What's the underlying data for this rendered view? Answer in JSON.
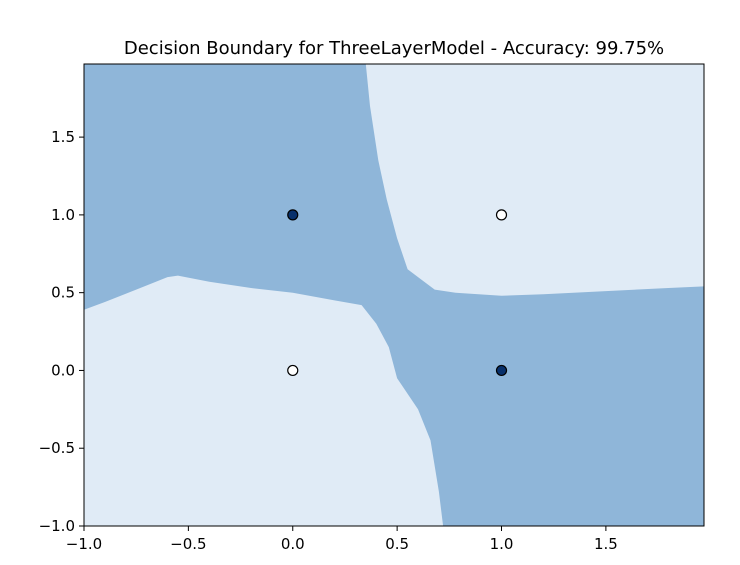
{
  "chart_data": {
    "type": "scatter",
    "title": "Decision Boundary for ThreeLayerModel - Accuracy: 99.75%",
    "xlabel": "",
    "ylabel": "",
    "xlim": [
      -1.0,
      1.97
    ],
    "ylim": [
      -1.0,
      1.97
    ],
    "xticks": [
      -1.0,
      -0.5,
      0.0,
      0.5,
      1.0,
      1.5
    ],
    "xtick_labels": [
      "−1.0",
      "−0.5",
      "0.0",
      "0.5",
      "1.0",
      "1.5"
    ],
    "yticks": [
      -1.0,
      -0.5,
      0.0,
      0.5,
      1.0,
      1.5
    ],
    "ytick_labels": [
      "−1.0",
      "−0.5",
      "0.0",
      "0.5",
      "1.0",
      "1.5"
    ],
    "grid": false,
    "colors": {
      "region_class0": "#e0ebf6",
      "region_class1": "#8fb6d9",
      "point_class1": "#08306b",
      "point_class0": "#ffffff",
      "point_edge": "#000000"
    },
    "points": [
      {
        "x": 0,
        "y": 0,
        "class": 0
      },
      {
        "x": 0,
        "y": 1,
        "class": 1
      },
      {
        "x": 1,
        "y": 0,
        "class": 1
      },
      {
        "x": 1,
        "y": 1,
        "class": 0
      }
    ],
    "regions": [
      {
        "class": 1,
        "polygon": [
          [
            -1.0,
            1.97
          ],
          [
            0.35,
            1.97
          ],
          [
            0.37,
            1.7
          ],
          [
            0.41,
            1.35
          ],
          [
            0.45,
            1.1
          ],
          [
            0.5,
            0.85
          ],
          [
            0.55,
            0.65
          ],
          [
            0.62,
            0.58
          ],
          [
            0.68,
            0.52
          ],
          [
            0.78,
            0.5
          ],
          [
            1.0,
            0.48
          ],
          [
            1.2,
            0.49
          ],
          [
            1.5,
            0.51
          ],
          [
            1.8,
            0.53
          ],
          [
            1.97,
            0.54
          ],
          [
            1.97,
            -1.0
          ],
          [
            0.72,
            -1.0
          ],
          [
            0.7,
            -0.78
          ],
          [
            0.66,
            -0.45
          ],
          [
            0.6,
            -0.25
          ],
          [
            0.5,
            -0.05
          ],
          [
            0.46,
            0.15
          ],
          [
            0.4,
            0.3
          ],
          [
            0.33,
            0.42
          ],
          [
            0.2,
            0.45
          ],
          [
            0.0,
            0.5
          ],
          [
            -0.2,
            0.53
          ],
          [
            -0.4,
            0.57
          ],
          [
            -0.55,
            0.61
          ],
          [
            -0.6,
            0.6
          ],
          [
            -0.75,
            0.52
          ],
          [
            -0.9,
            0.44
          ],
          [
            -1.0,
            0.39
          ]
        ]
      }
    ]
  }
}
